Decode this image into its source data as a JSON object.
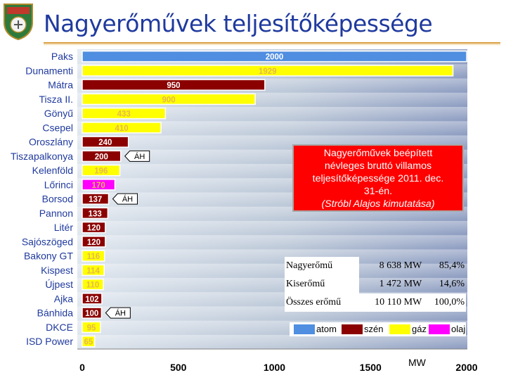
{
  "header": {
    "title": "Nagyerőművek teljesítőképessége"
  },
  "chart_data": {
    "type": "bar",
    "orientation": "horizontal",
    "categories": [
      "Paks",
      "Dunamenti",
      "Mátra",
      "Tisza II.",
      "Gönyű",
      "Csepel",
      "Oroszlány",
      "Tiszapalkonya",
      "Kelenföld",
      "Lőrinci",
      "Borsod",
      "Pannon",
      "Litér",
      "Sajószöged",
      "Bakony GT",
      "Kispest",
      "Újpest",
      "Ajka",
      "Bánhida",
      "DKCE",
      "ISD Power"
    ],
    "values": [
      2000,
      1929,
      950,
      900,
      433,
      410,
      240,
      200,
      196,
      170,
      137,
      133,
      120,
      120,
      116,
      114,
      110,
      102,
      100,
      95,
      65
    ],
    "value_labels": [
      "2000",
      "1929",
      "950",
      "900",
      "433",
      "410",
      "240",
      "200",
      "196",
      "170",
      "137",
      "133",
      "120",
      "120",
      "116",
      "114",
      "110",
      "102",
      "100",
      "95",
      "65"
    ],
    "fuel": [
      "atom",
      "gáz",
      "szén",
      "gáz",
      "gáz",
      "gáz",
      "szén",
      "szén",
      "gáz",
      "olaj",
      "szén",
      "szén",
      "szén",
      "szén",
      "gáz",
      "gáz",
      "gáz",
      "szén",
      "szén",
      "gáz",
      "gáz"
    ],
    "colors": {
      "atom": "#4f8ee0",
      "szén": "#8b0000",
      "gáz": "#ffff00",
      "olaj": "#ff00ff"
    },
    "label_colors": {
      "atom": "#ffffff",
      "szén": "#ffffff",
      "gáz": "#e6b84c",
      "olaj": "#e6b84c"
    },
    "xlim": [
      0,
      2000
    ],
    "xticks": [
      "0",
      "500",
      "1000",
      "1500",
      "2000"
    ],
    "xlabel": "MW",
    "annotations": [
      {
        "text": "ÁH",
        "category": "Tiszapalkonya"
      },
      {
        "text": "ÁH",
        "category": "Borsod"
      },
      {
        "text": "ÁH",
        "category": "Bánhida"
      }
    ]
  },
  "infobox": {
    "lines": [
      "Nagyerőművek beépített",
      "névleges bruttó villamos",
      "teljesítőképessége 2011. dec.",
      "31-én."
    ],
    "source": "(Stróbl Alajos kimutatása)"
  },
  "stats": [
    {
      "label": "Nagyerőmű",
      "value": "8 638 MW",
      "share": "85,4%"
    },
    {
      "label": "Kiserőmű",
      "value": "1 472 MW",
      "share": "14,6%"
    },
    {
      "label": "Összes erőmű",
      "value": "10 110 MW",
      "share": "100,0%"
    }
  ],
  "legend": [
    {
      "label": "atom",
      "color": "#4f8ee0"
    },
    {
      "label": "szén",
      "color": "#8b0000"
    },
    {
      "label": "gáz",
      "color": "#ffff00"
    },
    {
      "label": "olaj",
      "color": "#ff00ff"
    }
  ]
}
